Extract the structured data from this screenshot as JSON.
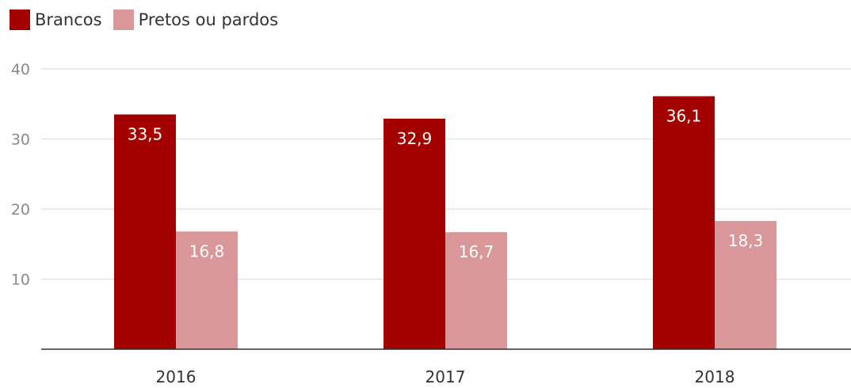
{
  "chart_data": {
    "type": "bar",
    "categories": [
      "2016",
      "2017",
      "2018"
    ],
    "series": [
      {
        "name": "Brancos",
        "color": "#a30000",
        "values": [
          33.5,
          32.9,
          36.1
        ],
        "labels": [
          "33,5",
          "32,9",
          "36,1"
        ]
      },
      {
        "name": "Pretos ou pardos",
        "color": "#d9979a",
        "values": [
          16.8,
          16.7,
          18.3
        ],
        "labels": [
          "16,8",
          "16,7",
          "18,3"
        ]
      }
    ],
    "yticks": [
      10,
      20,
      30,
      40
    ],
    "ylim": [
      0,
      40
    ],
    "grid": true,
    "legend_position": "top-left"
  }
}
